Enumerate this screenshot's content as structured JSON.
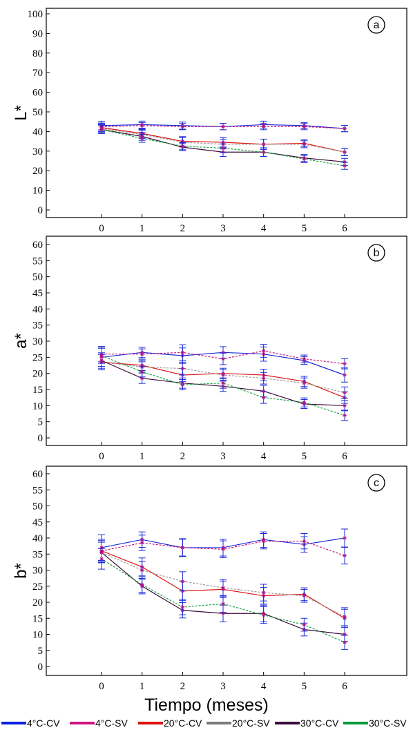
{
  "chart_data": [
    {
      "type": "line",
      "panel_label": "a",
      "ylabel": "L*",
      "xlabel": "",
      "ylim": [
        0,
        100
      ],
      "ytick_step": 10,
      "x": [
        0,
        1,
        2,
        3,
        4,
        5,
        6
      ],
      "series": [
        {
          "name": "4°C-CV",
          "values": [
            43.0,
            43.5,
            43.0,
            42.5,
            43.5,
            43.0,
            41.5
          ],
          "errors": [
            2.2,
            1.8,
            1.8,
            1.6,
            1.8,
            1.6,
            1.6
          ]
        },
        {
          "name": "4°C-SV",
          "values": [
            42.5,
            43.0,
            42.5,
            42.5,
            42.5,
            42.5,
            41.5
          ],
          "errors": [
            1.8,
            1.6,
            1.6,
            1.6,
            1.6,
            1.6,
            1.6
          ]
        },
        {
          "name": "20°C-CV",
          "values": [
            42.0,
            39.0,
            35.0,
            34.5,
            33.5,
            34.0,
            29.5
          ],
          "errors": [
            2.0,
            2.0,
            2.4,
            2.4,
            2.6,
            1.8,
            1.8
          ]
        },
        {
          "name": "20°C-SV",
          "values": [
            41.5,
            38.5,
            34.5,
            33.5,
            33.5,
            33.5,
            29.5
          ],
          "errors": [
            2.0,
            2.0,
            2.4,
            2.4,
            2.6,
            1.8,
            1.8
          ]
        },
        {
          "name": "30°C-CV",
          "values": [
            41.0,
            37.5,
            32.0,
            29.5,
            29.5,
            26.5,
            24.5
          ],
          "errors": [
            2.0,
            2.0,
            1.8,
            2.2,
            2.2,
            1.8,
            1.8
          ]
        },
        {
          "name": "30°C-SV",
          "values": [
            41.0,
            36.5,
            32.5,
            31.5,
            29.5,
            26.0,
            22.5
          ],
          "errors": [
            2.0,
            2.0,
            1.8,
            2.2,
            2.2,
            1.8,
            1.8
          ]
        }
      ]
    },
    {
      "type": "line",
      "panel_label": "b",
      "ylabel": "a*",
      "xlabel": "",
      "ylim": [
        0,
        60
      ],
      "ytick_step": 5,
      "x": [
        0,
        1,
        2,
        3,
        4,
        5,
        6
      ],
      "series": [
        {
          "name": "4°C-CV",
          "values": [
            25.0,
            26.5,
            25.5,
            26.5,
            26.0,
            24.0,
            19.5
          ],
          "errors": [
            2.8,
            1.6,
            2.4,
            1.8,
            2.2,
            1.2,
            2.2
          ]
        },
        {
          "name": "4°C-SV",
          "values": [
            26.0,
            26.0,
            26.5,
            24.5,
            27.0,
            24.5,
            23.0
          ],
          "errors": [
            2.4,
            1.6,
            2.4,
            1.8,
            2.0,
            1.2,
            1.6
          ]
        },
        {
          "name": "20°C-CV",
          "values": [
            23.5,
            22.5,
            19.5,
            20.0,
            19.5,
            17.5,
            12.5
          ],
          "errors": [
            2.4,
            1.6,
            2.0,
            1.6,
            1.8,
            1.6,
            1.8
          ]
        },
        {
          "name": "20°C-SV",
          "values": [
            23.5,
            22.0,
            21.5,
            19.5,
            18.5,
            17.0,
            14.0
          ],
          "errors": [
            2.4,
            1.6,
            2.0,
            1.6,
            1.8,
            1.6,
            1.8
          ]
        },
        {
          "name": "30°C-CV",
          "values": [
            24.0,
            18.5,
            17.0,
            16.0,
            14.5,
            10.5,
            10.0
          ],
          "errors": [
            2.4,
            1.6,
            1.6,
            1.6,
            1.8,
            1.4,
            1.6
          ]
        },
        {
          "name": "30°C-SV",
          "values": [
            25.5,
            20.5,
            16.5,
            17.0,
            12.5,
            11.0,
            7.0
          ],
          "errors": [
            2.4,
            1.6,
            1.6,
            1.6,
            1.8,
            1.4,
            1.6
          ]
        }
      ]
    },
    {
      "type": "line",
      "panel_label": "c",
      "ylabel": "b*",
      "xlabel": "Tiempo (meses)",
      "ylim": [
        0,
        60
      ],
      "ytick_step": 5,
      "x": [
        0,
        1,
        2,
        3,
        4,
        5,
        6
      ],
      "series": [
        {
          "name": "4°C-CV",
          "values": [
            37.0,
            39.5,
            37.0,
            37.0,
            39.5,
            38.0,
            40.0
          ],
          "errors": [
            4.0,
            2.4,
            2.8,
            2.6,
            2.4,
            2.4,
            2.8
          ]
        },
        {
          "name": "4°C-SV",
          "values": [
            36.0,
            38.5,
            37.0,
            36.5,
            39.0,
            39.0,
            34.5
          ],
          "errors": [
            3.6,
            2.4,
            2.6,
            2.6,
            2.4,
            2.4,
            2.6
          ]
        },
        {
          "name": "20°C-CV",
          "values": [
            36.0,
            31.0,
            23.5,
            24.0,
            22.0,
            22.5,
            15.0
          ],
          "errors": [
            3.2,
            2.8,
            3.0,
            2.6,
            2.6,
            2.0,
            2.8
          ]
        },
        {
          "name": "20°C-SV",
          "values": [
            35.5,
            30.0,
            26.5,
            24.5,
            23.0,
            22.0,
            15.5
          ],
          "errors": [
            3.2,
            2.8,
            3.0,
            2.6,
            2.6,
            2.0,
            2.8
          ]
        },
        {
          "name": "30°C-CV",
          "values": [
            35.5,
            25.0,
            17.5,
            16.5,
            16.5,
            11.5,
            10.0
          ],
          "errors": [
            3.2,
            2.4,
            2.4,
            2.6,
            2.6,
            2.0,
            2.2
          ]
        },
        {
          "name": "30°C-SV",
          "values": [
            33.5,
            25.5,
            18.5,
            19.5,
            16.0,
            13.0,
            7.5
          ],
          "errors": [
            3.2,
            2.4,
            2.4,
            2.6,
            2.6,
            2.0,
            2.2
          ]
        }
      ]
    }
  ],
  "legend": [
    {
      "label": "4°C-CV",
      "color": "#0a1fe0"
    },
    {
      "label": "4°C-SV",
      "color": "#d0137a"
    },
    {
      "label": "20°C-CV",
      "color": "#e01010"
    },
    {
      "label": "20°C-SV",
      "color": "#7a7a7a"
    },
    {
      "label": "30°C-CV",
      "color": "#3d0a3a"
    },
    {
      "label": "30°C-SV",
      "color": "#0a9a3a"
    }
  ],
  "series_styles": {
    "4°C-CV": {
      "color": "#1a2ad8",
      "dashed": false
    },
    "4°C-SV": {
      "color": "#c8147e",
      "dashed": true
    },
    "20°C-CV": {
      "color": "#e01515",
      "dashed": false
    },
    "20°C-SV": {
      "color": "#9a9a9a",
      "dashed": true
    },
    "30°C-CV": {
      "color": "#3d0a3a",
      "dashed": false
    },
    "30°C-SV": {
      "color": "#12a33e",
      "dashed": true
    }
  },
  "errorbar_color": "#1a2ad8",
  "marker_color": "#b0148a"
}
